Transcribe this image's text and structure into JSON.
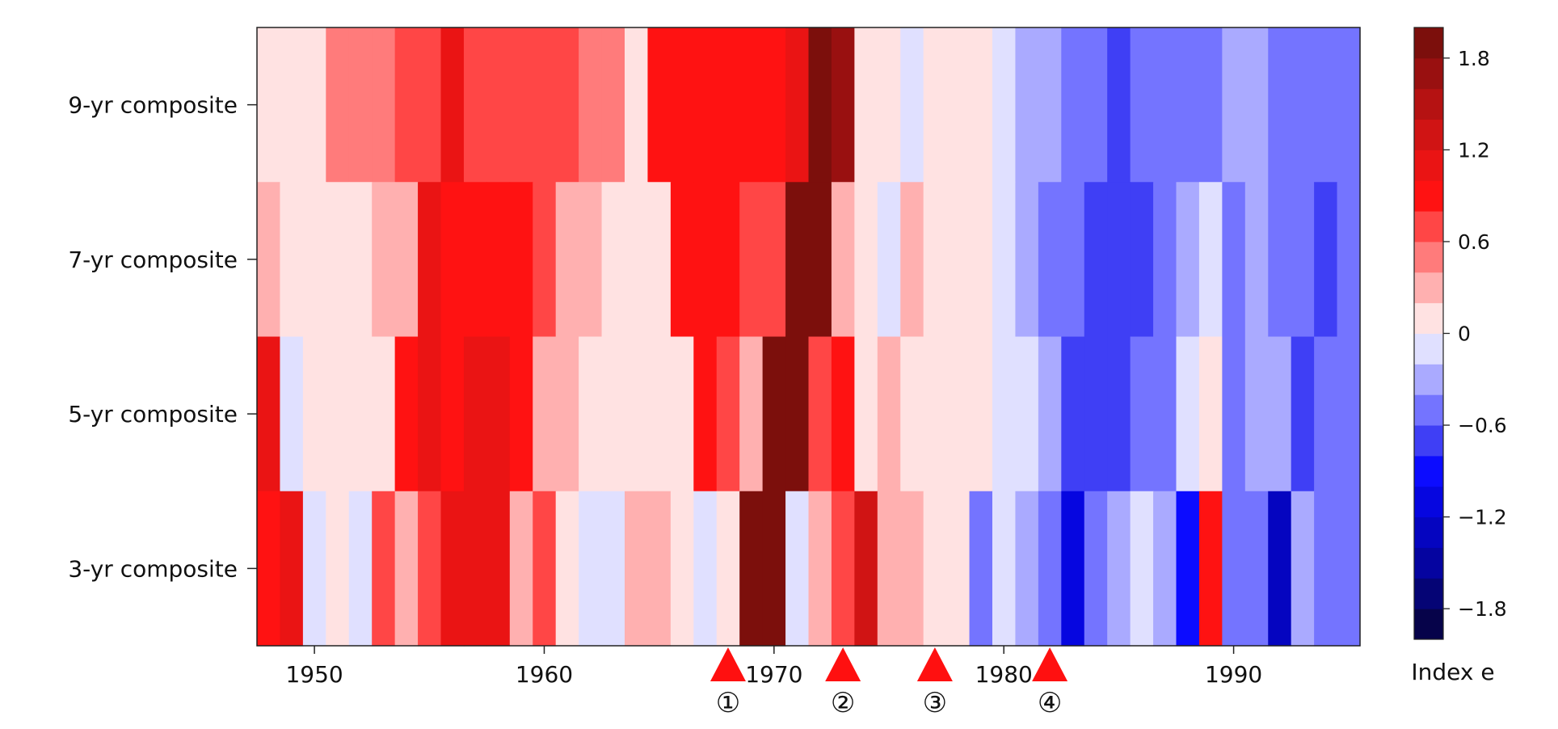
{
  "chart_data": {
    "type": "heatmap",
    "title": "",
    "xlabel": "",
    "ylabel": "",
    "x_start": 1948,
    "x_end": 1995,
    "xlim": [
      1947.5,
      1995.5
    ],
    "x_ticks": [
      1950,
      1960,
      1970,
      1980,
      1990
    ],
    "rows": [
      {
        "name": "9-yr composite",
        "values": [
          0.1,
          0.1,
          0.1,
          0.4,
          0.4,
          0.4,
          0.6,
          0.6,
          1.0,
          0.7,
          0.6,
          0.6,
          0.6,
          0.6,
          0.4,
          0.4,
          0.1,
          0.8,
          0.8,
          0.8,
          0.8,
          0.8,
          0.8,
          1.0,
          1.9,
          1.7,
          0.1,
          0.1,
          -0.1,
          0.1,
          0.1,
          0.1,
          -0.1,
          -0.3,
          -0.3,
          -0.5,
          -0.5,
          -0.8,
          -0.6,
          -0.6,
          -0.5,
          -0.5,
          -0.3,
          -0.3,
          -0.5,
          -0.5,
          -0.5,
          -0.5
        ]
      },
      {
        "name": "7-yr composite",
        "values": [
          0.3,
          0.1,
          0.1,
          0.1,
          0.1,
          0.3,
          0.3,
          1.0,
          0.8,
          0.8,
          0.8,
          0.8,
          0.6,
          0.3,
          0.3,
          0.1,
          0.1,
          0.1,
          0.8,
          0.8,
          0.8,
          0.6,
          0.6,
          1.9,
          1.9,
          0.3,
          0.1,
          -0.1,
          0.3,
          0.1,
          0.1,
          0.1,
          -0.1,
          -0.3,
          -0.5,
          -0.5,
          -0.8,
          -0.8,
          -0.8,
          -0.5,
          -0.3,
          -0.1,
          -0.5,
          -0.3,
          -0.5,
          -0.5,
          -0.8,
          -0.5
        ]
      },
      {
        "name": "5-yr composite",
        "values": [
          1.0,
          -0.1,
          0.1,
          0.1,
          0.1,
          0.1,
          0.8,
          1.0,
          0.8,
          1.0,
          1.0,
          0.8,
          0.3,
          0.3,
          0.1,
          0.1,
          0.1,
          0.1,
          0.1,
          0.8,
          0.6,
          0.3,
          1.9,
          1.9,
          0.6,
          0.8,
          0.1,
          0.3,
          0.1,
          0.1,
          0.1,
          0.1,
          -0.1,
          -0.1,
          -0.3,
          -0.8,
          -0.8,
          -0.8,
          -0.5,
          -0.5,
          -0.1,
          0.1,
          -0.5,
          -0.3,
          -0.3,
          -0.8,
          -0.5,
          -0.5
        ]
      },
      {
        "name": "3-yr composite",
        "values": [
          0.8,
          1.0,
          -0.1,
          0.1,
          -0.1,
          0.6,
          0.3,
          0.6,
          1.1,
          1.0,
          1.0,
          0.3,
          0.6,
          0.1,
          -0.1,
          -0.1,
          0.3,
          0.3,
          0.1,
          -0.1,
          0.1,
          1.9,
          1.9,
          -0.1,
          0.3,
          0.6,
          1.3,
          0.3,
          0.3,
          0.1,
          0.1,
          -0.5,
          -0.1,
          -0.3,
          -0.5,
          -1.1,
          -0.5,
          -0.3,
          -0.1,
          -0.3,
          -1.0,
          0.8,
          -0.5,
          -0.5,
          -1.4,
          -0.3,
          -0.5,
          -0.5
        ]
      }
    ],
    "colorbar": {
      "label": "Index e",
      "ticks": [
        {
          "value": 1.8,
          "label": "1.8"
        },
        {
          "value": 1.2,
          "label": "1.2"
        },
        {
          "value": 0.6,
          "label": "0.6"
        },
        {
          "value": 0.0,
          "label": "0"
        },
        {
          "value": -0.6,
          "label": "−0.6"
        },
        {
          "value": -1.2,
          "label": "−1.2"
        },
        {
          "value": -1.8,
          "label": "−1.8"
        }
      ],
      "range": [
        -2.0,
        2.0
      ],
      "bins": 20,
      "colors": [
        "#06034a",
        "#050475",
        "#0504a0",
        "#0505c0",
        "#0606e0",
        "#0c0cff",
        "#3f3ff5",
        "#7474ff",
        "#aaaaff",
        "#e0e0ff",
        "#ffe2e2",
        "#ffb0b0",
        "#ff7b7b",
        "#ff4646",
        "#ff1212",
        "#ea1414",
        "#d01414",
        "#b51212",
        "#991010",
        "#7c0f0c"
      ]
    },
    "markers": [
      {
        "year": 1968,
        "label": "①",
        "color": "#ff1010"
      },
      {
        "year": 1973,
        "label": "②",
        "color": "#ff1010"
      },
      {
        "year": 1977,
        "label": "③",
        "color": "#ff1010"
      },
      {
        "year": 1982,
        "label": "④",
        "color": "#ff1010"
      }
    ]
  }
}
